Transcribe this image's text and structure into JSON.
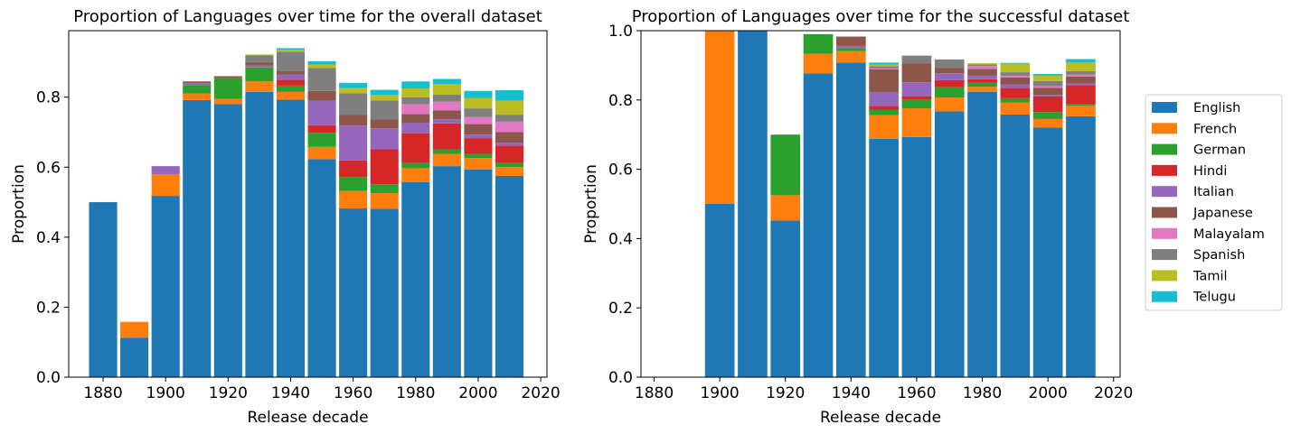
{
  "languages": [
    "English",
    "French",
    "German",
    "Hindi",
    "Italian",
    "Japanese",
    "Malayalam",
    "Spanish",
    "Tamil",
    "Telugu"
  ],
  "colors": [
    "#1f77b4",
    "#ff7f0e",
    "#2ca02c",
    "#d62728",
    "#9467bd",
    "#8c564b",
    "#e377c2",
    "#7f7f7f",
    "#bcbd22",
    "#17becf"
  ],
  "chart_data": [
    {
      "type": "bar",
      "stacked": true,
      "title": "Proportion of Languages over time for the overall dataset",
      "xlabel": "Release decade",
      "ylabel": "Proportion",
      "xlim": [
        1869,
        2022
      ],
      "ylim": [
        0,
        0.99
      ],
      "xticks": [
        1880,
        1900,
        1920,
        1940,
        1960,
        1980,
        2000,
        2020
      ],
      "yticks": [
        0.0,
        0.2,
        0.4,
        0.6,
        0.8
      ],
      "ytick_labels": [
        "0.0",
        "0.2",
        "0.4",
        "0.6",
        "0.8"
      ],
      "bar_width": 9,
      "decades": [
        1880,
        1890,
        1900,
        1910,
        1920,
        1930,
        1940,
        1950,
        1960,
        1970,
        1980,
        1990,
        2000,
        2010
      ],
      "series": [
        {
          "name": "English",
          "values": [
            0.5,
            0.113,
            0.518,
            0.792,
            0.78,
            0.815,
            0.793,
            0.623,
            0.482,
            0.481,
            0.557,
            0.603,
            0.593,
            0.575
          ]
        },
        {
          "name": "French",
          "values": [
            0.0,
            0.045,
            0.062,
            0.018,
            0.015,
            0.03,
            0.022,
            0.035,
            0.05,
            0.045,
            0.04,
            0.035,
            0.033,
            0.025
          ]
        },
        {
          "name": "German",
          "values": [
            0.0,
            0.0,
            0.0,
            0.025,
            0.06,
            0.04,
            0.018,
            0.04,
            0.04,
            0.025,
            0.015,
            0.012,
            0.012,
            0.012
          ]
        },
        {
          "name": "Hindi",
          "values": [
            0.0,
            0.0,
            0.0,
            0.0,
            0.0,
            0.0,
            0.017,
            0.022,
            0.047,
            0.1,
            0.085,
            0.075,
            0.045,
            0.05
          ]
        },
        {
          "name": "Italian",
          "values": [
            0.0,
            0.0,
            0.023,
            0.005,
            0.0,
            0.005,
            0.015,
            0.07,
            0.1,
            0.06,
            0.03,
            0.012,
            0.01,
            0.008
          ]
        },
        {
          "name": "Japanese",
          "values": [
            0.0,
            0.0,
            0.0,
            0.005,
            0.005,
            0.01,
            0.01,
            0.028,
            0.03,
            0.025,
            0.025,
            0.025,
            0.03,
            0.03
          ]
        },
        {
          "name": "Malayalam",
          "values": [
            0.0,
            0.0,
            0.0,
            0.0,
            0.0,
            0.0,
            0.0,
            0.0,
            0.0,
            0.0,
            0.028,
            0.025,
            0.02,
            0.03
          ]
        },
        {
          "name": "Spanish",
          "values": [
            0.0,
            0.0,
            0.0,
            0.0,
            0.0,
            0.02,
            0.055,
            0.065,
            0.062,
            0.055,
            0.02,
            0.02,
            0.025,
            0.02
          ]
        },
        {
          "name": "Tamil",
          "values": [
            0.0,
            0.0,
            0.0,
            0.0,
            0.0,
            0.002,
            0.005,
            0.01,
            0.015,
            0.015,
            0.025,
            0.03,
            0.03,
            0.04
          ]
        },
        {
          "name": "Telugu",
          "values": [
            0.0,
            0.0,
            0.0,
            0.0,
            0.0,
            0.0,
            0.005,
            0.01,
            0.015,
            0.015,
            0.02,
            0.015,
            0.02,
            0.03
          ]
        }
      ]
    },
    {
      "type": "bar",
      "stacked": true,
      "title": "Proportion of Languages over time for the successful dataset",
      "xlabel": "Release decade",
      "ylabel": "Proportion",
      "xlim": [
        1876,
        2022
      ],
      "ylim": [
        0,
        1.0
      ],
      "xticks": [
        1880,
        1900,
        1920,
        1940,
        1960,
        1980,
        2000,
        2020
      ],
      "yticks": [
        0.0,
        0.2,
        0.4,
        0.6,
        0.8,
        1.0
      ],
      "ytick_labels": [
        "0.0",
        "0.2",
        "0.4",
        "0.6",
        "0.8",
        "1.0"
      ],
      "bar_width": 9,
      "decades": [
        1900,
        1910,
        1920,
        1930,
        1940,
        1950,
        1960,
        1970,
        1980,
        1990,
        2000,
        2010
      ],
      "series": [
        {
          "name": "English",
          "values": [
            0.5,
            1.0,
            0.452,
            0.877,
            0.908,
            0.688,
            0.693,
            0.767,
            0.823,
            0.758,
            0.72,
            0.753
          ]
        },
        {
          "name": "French",
          "values": [
            0.5,
            0.0,
            0.073,
            0.056,
            0.033,
            0.068,
            0.083,
            0.04,
            0.015,
            0.035,
            0.025,
            0.03
          ]
        },
        {
          "name": "German",
          "values": [
            0.0,
            0.0,
            0.175,
            0.057,
            0.007,
            0.015,
            0.025,
            0.03,
            0.012,
            0.012,
            0.02,
            0.005
          ]
        },
        {
          "name": "Hindi",
          "values": [
            0.0,
            0.0,
            0.0,
            0.0,
            0.0,
            0.012,
            0.01,
            0.02,
            0.01,
            0.03,
            0.045,
            0.055
          ]
        },
        {
          "name": "Italian",
          "values": [
            0.0,
            0.0,
            0.0,
            0.0,
            0.008,
            0.04,
            0.04,
            0.02,
            0.01,
            0.01,
            0.005,
            0.005
          ]
        },
        {
          "name": "Japanese",
          "values": [
            0.0,
            0.0,
            0.0,
            0.0,
            0.027,
            0.065,
            0.055,
            0.015,
            0.02,
            0.02,
            0.02,
            0.02
          ]
        },
        {
          "name": "Malayalam",
          "values": [
            0.0,
            0.0,
            0.0,
            0.0,
            0.0,
            0.004,
            0.0,
            0.0,
            0.008,
            0.005,
            0.005,
            0.005
          ]
        },
        {
          "name": "Spanish",
          "values": [
            0.0,
            0.0,
            0.0,
            0.0,
            0.0,
            0.005,
            0.022,
            0.025,
            0.005,
            0.01,
            0.015,
            0.01
          ]
        },
        {
          "name": "Tamil",
          "values": [
            0.0,
            0.0,
            0.0,
            0.0,
            0.0,
            0.005,
            0.0,
            0.0,
            0.003,
            0.025,
            0.015,
            0.025
          ]
        },
        {
          "name": "Telugu",
          "values": [
            0.0,
            0.0,
            0.0,
            0.0,
            0.0,
            0.006,
            0.0,
            0.0,
            0.0,
            0.002,
            0.005,
            0.01
          ]
        }
      ]
    }
  ]
}
